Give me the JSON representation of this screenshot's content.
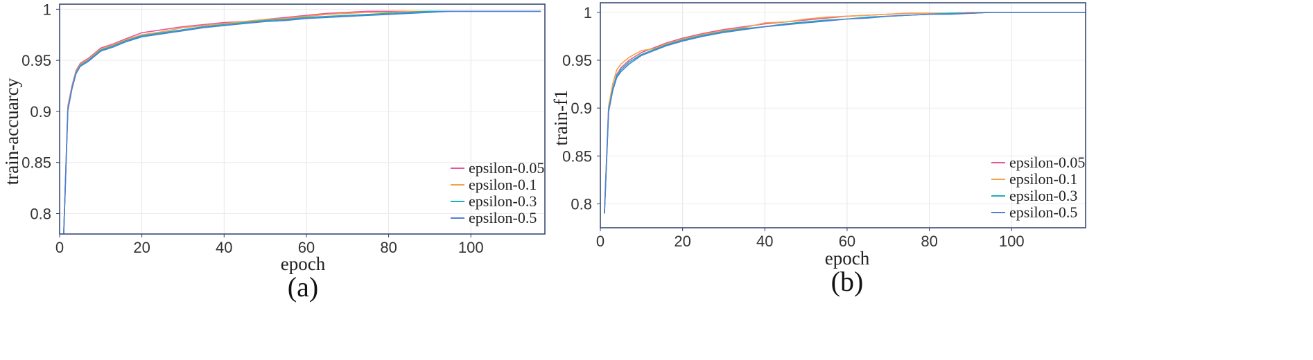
{
  "chart_data": [
    {
      "type": "line",
      "id": "a",
      "caption": "(a)",
      "xlabel": "epoch",
      "ylabel": "train-accuarcy",
      "xlim": [
        0,
        118
      ],
      "ylim": [
        0.78,
        1.005
      ],
      "xticks": [
        0,
        20,
        40,
        60,
        80,
        100
      ],
      "yticks": [
        0.8,
        0.85,
        0.9,
        0.95,
        1
      ],
      "ytick_labels": [
        "0.8",
        "0.85",
        "0.9",
        "0.95",
        "1"
      ],
      "legend_position": "bottom-right",
      "series": [
        {
          "name": "epsilon-0.05",
          "color": "#e5579b",
          "x": [
            1,
            2,
            3,
            4,
            5,
            7,
            10,
            13,
            16,
            20,
            25,
            30,
            35,
            40,
            45,
            50,
            55,
            60,
            65,
            70,
            75,
            80,
            85,
            90,
            95,
            100,
            105,
            110,
            117
          ],
          "y": [
            0.78,
            0.905,
            0.925,
            0.94,
            0.947,
            0.952,
            0.962,
            0.966,
            0.971,
            0.977,
            0.98,
            0.983,
            0.985,
            0.987,
            0.988,
            0.99,
            0.992,
            0.994,
            0.996,
            0.997,
            0.998,
            0.998,
            0.998,
            0.998,
            0.998,
            0.998,
            0.998,
            0.998,
            0.998
          ]
        },
        {
          "name": "epsilon-0.1",
          "color": "#f5a149",
          "x": [
            1,
            2,
            3,
            4,
            5,
            7,
            10,
            13,
            16,
            20,
            25,
            30,
            35,
            40,
            45,
            50,
            55,
            60,
            65,
            70,
            75,
            80,
            85,
            90,
            95,
            100,
            105,
            110,
            117
          ],
          "y": [
            0.78,
            0.903,
            0.924,
            0.939,
            0.946,
            0.951,
            0.961,
            0.965,
            0.97,
            0.975,
            0.978,
            0.982,
            0.984,
            0.986,
            0.988,
            0.99,
            0.991,
            0.993,
            0.995,
            0.996,
            0.997,
            0.997,
            0.998,
            0.998,
            0.998,
            0.998,
            0.998,
            0.998,
            0.998
          ]
        },
        {
          "name": "epsilon-0.3",
          "color": "#1ab0b8",
          "x": [
            1,
            2,
            3,
            4,
            5,
            7,
            10,
            13,
            16,
            20,
            25,
            30,
            35,
            40,
            45,
            50,
            55,
            60,
            65,
            70,
            75,
            80,
            85,
            90,
            95,
            100,
            105,
            110,
            117
          ],
          "y": [
            0.78,
            0.902,
            0.923,
            0.938,
            0.945,
            0.95,
            0.96,
            0.964,
            0.969,
            0.974,
            0.977,
            0.98,
            0.983,
            0.985,
            0.987,
            0.989,
            0.99,
            0.992,
            0.993,
            0.994,
            0.995,
            0.996,
            0.997,
            0.998,
            0.998,
            0.998,
            0.998,
            0.998,
            0.998
          ]
        },
        {
          "name": "epsilon-0.5",
          "color": "#4f7fd6",
          "x": [
            1,
            2,
            3,
            4,
            5,
            7,
            10,
            13,
            16,
            20,
            25,
            30,
            35,
            40,
            45,
            50,
            55,
            60,
            65,
            70,
            75,
            80,
            85,
            90,
            95,
            100,
            105,
            110,
            117
          ],
          "y": [
            0.78,
            0.901,
            0.922,
            0.937,
            0.944,
            0.949,
            0.959,
            0.963,
            0.968,
            0.973,
            0.976,
            0.979,
            0.982,
            0.984,
            0.986,
            0.988,
            0.989,
            0.991,
            0.992,
            0.993,
            0.994,
            0.995,
            0.996,
            0.997,
            0.998,
            0.998,
            0.998,
            0.998,
            0.998
          ]
        }
      ]
    },
    {
      "type": "line",
      "id": "b",
      "caption": "(b)",
      "xlabel": "epoch",
      "ylabel": "train-f1",
      "xlim": [
        0,
        118
      ],
      "ylim": [
        0.775,
        1.01
      ],
      "xticks": [
        0,
        20,
        40,
        60,
        80,
        100
      ],
      "yticks": [
        0.8,
        0.85,
        0.9,
        0.95,
        1
      ],
      "ytick_labels": [
        "0.8",
        "0.85",
        "0.9",
        "0.95",
        "1"
      ],
      "legend_position": "bottom-right",
      "series": [
        {
          "name": "epsilon-0.05",
          "color": "#e5579b",
          "x": [
            1,
            2,
            3,
            4,
            5,
            7,
            10,
            13,
            16,
            20,
            25,
            30,
            35,
            40,
            45,
            50,
            55,
            60,
            65,
            70,
            75,
            80,
            85,
            90,
            95,
            100,
            105,
            110,
            118
          ],
          "y": [
            0.79,
            0.9,
            0.92,
            0.935,
            0.942,
            0.95,
            0.958,
            0.963,
            0.968,
            0.973,
            0.978,
            0.982,
            0.985,
            0.988,
            0.99,
            0.992,
            0.994,
            0.996,
            0.997,
            0.998,
            0.999,
            0.999,
            0.999,
            1.0,
            1.0,
            1.0,
            1.0,
            1.0,
            1.0
          ]
        },
        {
          "name": "epsilon-0.1",
          "color": "#f5a149",
          "x": [
            1,
            2,
            3,
            4,
            5,
            7,
            10,
            13,
            16,
            20,
            25,
            30,
            35,
            40,
            45,
            50,
            55,
            60,
            65,
            70,
            75,
            80,
            85,
            90,
            95,
            100,
            105,
            110,
            118
          ],
          "y": [
            0.79,
            0.902,
            0.925,
            0.94,
            0.946,
            0.953,
            0.96,
            0.962,
            0.967,
            0.972,
            0.977,
            0.981,
            0.984,
            0.989,
            0.99,
            0.993,
            0.995,
            0.996,
            0.997,
            0.998,
            0.999,
            0.999,
            0.999,
            1.0,
            1.0,
            1.0,
            1.0,
            1.0,
            1.0
          ]
        },
        {
          "name": "epsilon-0.3",
          "color": "#1ab0b8",
          "x": [
            1,
            2,
            3,
            4,
            5,
            7,
            10,
            13,
            16,
            20,
            25,
            30,
            35,
            40,
            45,
            50,
            55,
            60,
            65,
            70,
            75,
            80,
            85,
            90,
            95,
            100,
            105,
            110,
            118
          ],
          "y": [
            0.79,
            0.898,
            0.92,
            0.934,
            0.94,
            0.948,
            0.956,
            0.961,
            0.966,
            0.971,
            0.976,
            0.98,
            0.983,
            0.985,
            0.988,
            0.99,
            0.992,
            0.993,
            0.995,
            0.996,
            0.997,
            0.998,
            0.999,
            0.999,
            1.0,
            1.0,
            1.0,
            1.0,
            1.0
          ]
        },
        {
          "name": "epsilon-0.5",
          "color": "#4f7fd6",
          "x": [
            1,
            2,
            3,
            4,
            5,
            7,
            10,
            13,
            16,
            20,
            25,
            30,
            35,
            40,
            45,
            50,
            55,
            60,
            65,
            70,
            75,
            80,
            85,
            90,
            95,
            100,
            105,
            110,
            118
          ],
          "y": [
            0.79,
            0.896,
            0.918,
            0.932,
            0.938,
            0.946,
            0.955,
            0.96,
            0.965,
            0.97,
            0.975,
            0.979,
            0.982,
            0.985,
            0.987,
            0.989,
            0.991,
            0.993,
            0.994,
            0.996,
            0.997,
            0.998,
            0.998,
            0.999,
            1.0,
            1.0,
            1.0,
            1.0,
            1.0
          ]
        }
      ]
    }
  ]
}
